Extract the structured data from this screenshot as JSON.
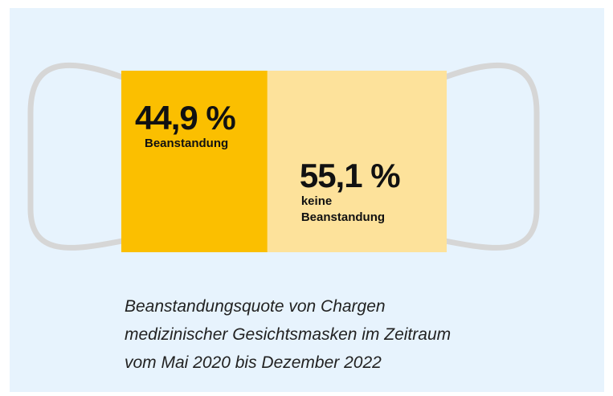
{
  "chart_data": {
    "type": "bar",
    "categories": [
      "Beanstandung",
      "keine Beanstandung"
    ],
    "values": [
      44.9,
      55.1
    ],
    "value_labels": [
      "44,9 %",
      "55,1 %"
    ],
    "colors": [
      "#fbbf00",
      "#fde29b"
    ],
    "caption": [
      "Beanstandungsquote von Chargen",
      "medizinischer Gesichtsmasken im Zeitraum",
      "vom Mai 2020 bis Dezember 2022"
    ]
  }
}
